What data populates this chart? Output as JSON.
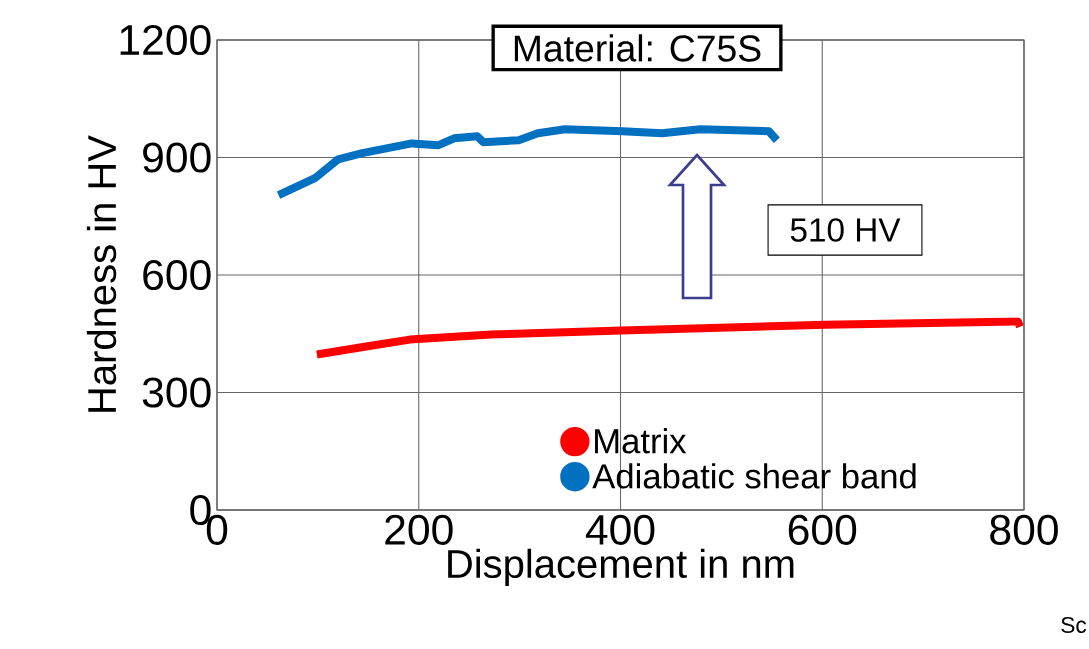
{
  "chart_data": {
    "type": "line",
    "xlabel": "Displacement in nm",
    "ylabel": "Hardness in HV",
    "xlim": [
      0,
      800
    ],
    "xticks": [
      0,
      200,
      400,
      600,
      800
    ],
    "ylim": [
      0,
      1200
    ],
    "yticks": [
      0,
      300,
      600,
      900,
      1200
    ],
    "grid": true,
    "legend": "bottom",
    "line_style": "solid",
    "series": [
      {
        "name": "Matrix",
        "color": "#ff0000",
        "x": [
          99,
          154,
          191,
          272,
          401,
          603,
          794,
          796
        ],
        "values": [
          397,
          420,
          435,
          448,
          458,
          473,
          481,
          468
        ]
      },
      {
        "name": "Adiabatic shear band",
        "color": "#0070c0",
        "x": [
          61,
          97,
          120,
          144,
          193,
          219,
          235,
          258,
          264,
          299,
          318,
          345,
          402,
          441,
          479,
          547,
          555
        ],
        "values": [
          804,
          847,
          895,
          911,
          936,
          931,
          949,
          954,
          939,
          944,
          962,
          972,
          967,
          962,
          972,
          967,
          944
        ]
      }
    ],
    "annotations": [
      "Material: C75S",
      "510 HV",
      "Sc"
    ]
  }
}
